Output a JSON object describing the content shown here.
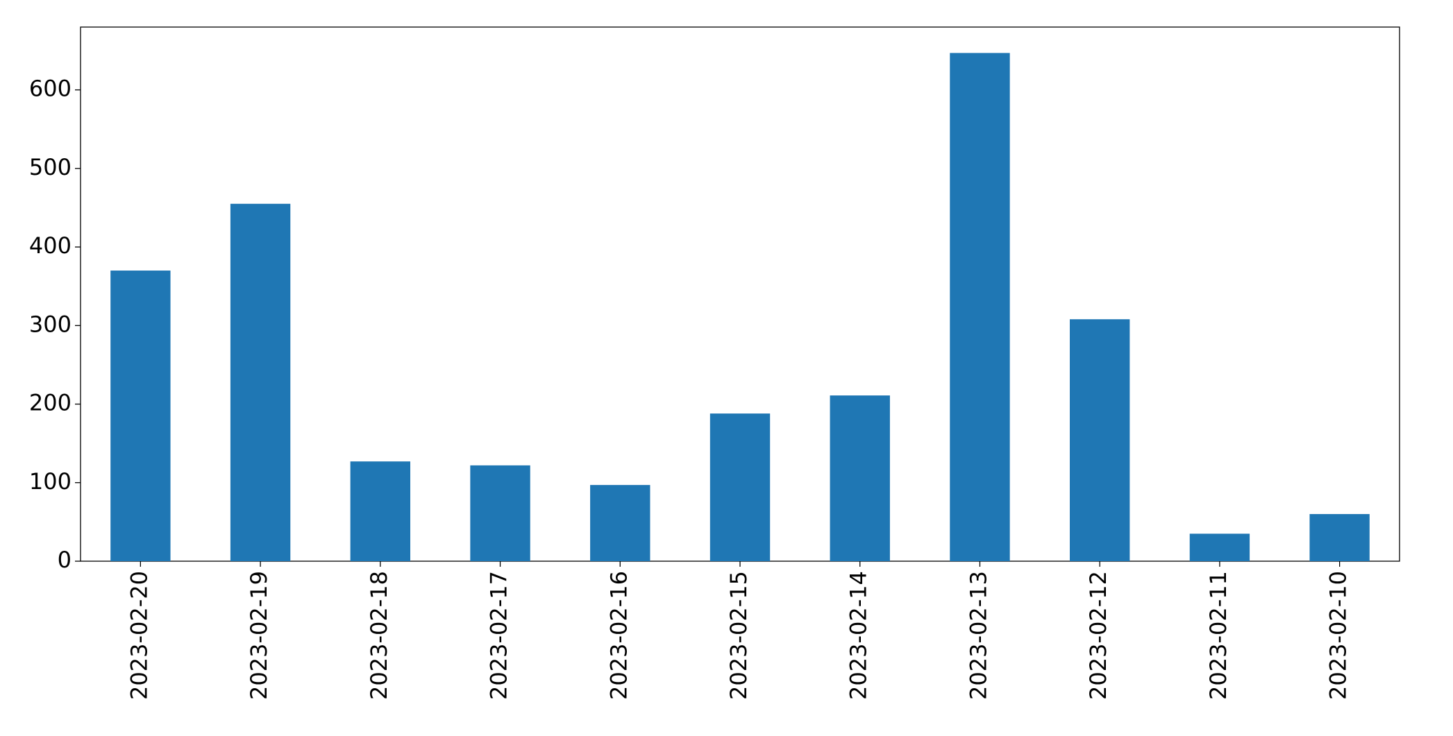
{
  "chart_data": {
    "type": "bar",
    "categories": [
      "2023-02-20",
      "2023-02-19",
      "2023-02-18",
      "2023-02-17",
      "2023-02-16",
      "2023-02-15",
      "2023-02-14",
      "2023-02-13",
      "2023-02-12",
      "2023-02-11",
      "2023-02-10"
    ],
    "values": [
      370,
      455,
      127,
      122,
      97,
      188,
      211,
      647,
      308,
      35,
      60
    ],
    "color": "#1f77b4",
    "ylim": [
      0,
      680
    ],
    "yticks": [
      0,
      100,
      200,
      300,
      400,
      500,
      600
    ],
    "grid": false
  }
}
